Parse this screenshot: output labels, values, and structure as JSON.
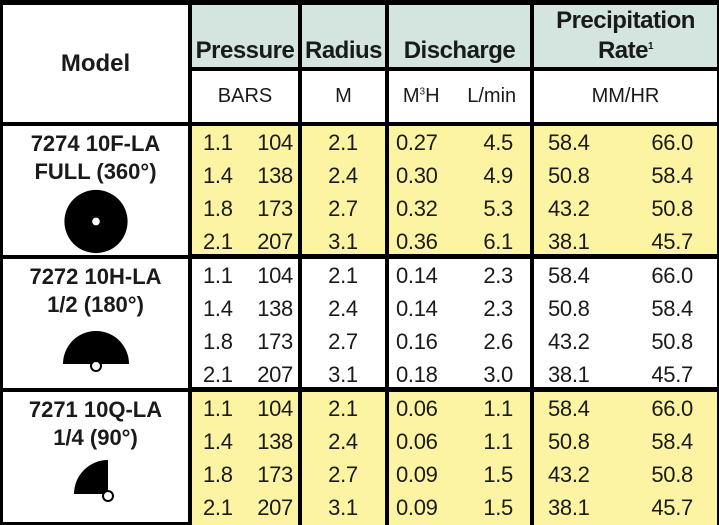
{
  "headers": {
    "model": "Model",
    "pressure": "Pressure",
    "radius": "Radius",
    "discharge": "Discharge",
    "precip_line1": "Precipitation",
    "precip_line2": "Rate",
    "precip_sup": "1"
  },
  "units": {
    "bars": "BARS",
    "m": "M",
    "m3h_base": "M",
    "m3h_sup": "3",
    "m3h_end": "H",
    "lmin": "L/min",
    "mmhr": "MM/HR"
  },
  "models": [
    {
      "line1": "7274 10F-LA",
      "line2": "FULL (360°)",
      "icon": "full-circle-icon",
      "rows": [
        [
          "1.1",
          "104",
          "2.1",
          "0.27",
          "4.5",
          "58.4",
          "66.0"
        ],
        [
          "1.4",
          "138",
          "2.4",
          "0.30",
          "4.9",
          "50.8",
          "58.4"
        ],
        [
          "1.8",
          "173",
          "2.7",
          "0.32",
          "5.3",
          "43.2",
          "50.8"
        ],
        [
          "2.1",
          "207",
          "3.1",
          "0.36",
          "6.1",
          "38.1",
          "45.7"
        ]
      ]
    },
    {
      "line1": "7272 10H-LA",
      "line2": "1/2 (180°)",
      "icon": "half-circle-icon",
      "rows": [
        [
          "1.1",
          "104",
          "2.1",
          "0.14",
          "2.3",
          "58.4",
          "66.0"
        ],
        [
          "1.4",
          "138",
          "2.4",
          "0.14",
          "2.3",
          "50.8",
          "58.4"
        ],
        [
          "1.8",
          "173",
          "2.7",
          "0.16",
          "2.6",
          "43.2",
          "50.8"
        ],
        [
          "2.1",
          "207",
          "3.1",
          "0.18",
          "3.0",
          "38.1",
          "45.7"
        ]
      ]
    },
    {
      "line1": "7271 10Q-LA",
      "line2": "1/4 (90°)",
      "icon": "quarter-circle-icon",
      "rows": [
        [
          "1.1",
          "104",
          "2.1",
          "0.06",
          "1.1",
          "58.4",
          "66.0"
        ],
        [
          "1.4",
          "138",
          "2.4",
          "0.06",
          "1.1",
          "50.8",
          "58.4"
        ],
        [
          "1.8",
          "173",
          "2.7",
          "0.09",
          "1.5",
          "43.2",
          "50.8"
        ],
        [
          "2.1",
          "207",
          "3.1",
          "0.09",
          "1.5",
          "38.1",
          "45.7"
        ]
      ]
    }
  ],
  "colors": {
    "header_bg": "#d3e5de",
    "row_yellow": "#fdf4a3",
    "row_white": "#ffffff",
    "border": "#000000"
  }
}
